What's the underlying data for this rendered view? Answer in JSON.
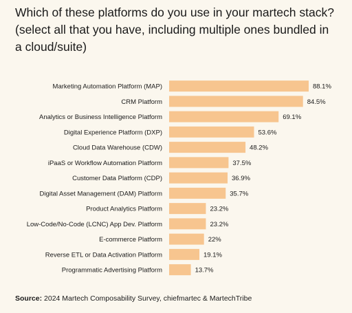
{
  "title": "Which of these platforms do you use in your martech stack? (select all that you have, including multiple ones bundled in a cloud/suite)",
  "source": {
    "label": "Source:",
    "text": " 2024 Martech Composability Survey, chiefmartec & MartechTribe"
  },
  "colors": {
    "bar": "#f7c58f",
    "background": "#fbf7ee",
    "text": "#1a1a1a"
  },
  "chart_data": {
    "type": "bar",
    "orientation": "horizontal",
    "categories": [
      "Marketing Automation Platform (MAP)",
      "CRM Platform",
      "Analytics or Business Intelligence Platform",
      "Digital Experience Platform (DXP)",
      "Cloud Data Warehouse (CDW)",
      "iPaaS or Workflow Automation Platform",
      "Customer Data Platform (CDP)",
      "Digital Asset Management (DAM) Platform",
      "Product Analytics Platform",
      "Low-Code/No-Code (LCNC) App Dev. Platform",
      "E-commerce Platform",
      "Reverse ETL or Data Activation Platform",
      "Programmatic Advertising Platform"
    ],
    "values": [
      88.1,
      84.5,
      69.1,
      53.6,
      48.2,
      37.5,
      36.9,
      35.7,
      23.2,
      23.2,
      22,
      19.1,
      13.7
    ],
    "value_labels": [
      "88.1%",
      "84.5%",
      "69.1%",
      "53.6%",
      "48.2%",
      "37.5%",
      "36.9%",
      "35.7%",
      "23.2%",
      "23.2%",
      "22%",
      "19.1%",
      "13.7%"
    ],
    "xlim": [
      0,
      100
    ],
    "grid": false,
    "legend": "none"
  }
}
